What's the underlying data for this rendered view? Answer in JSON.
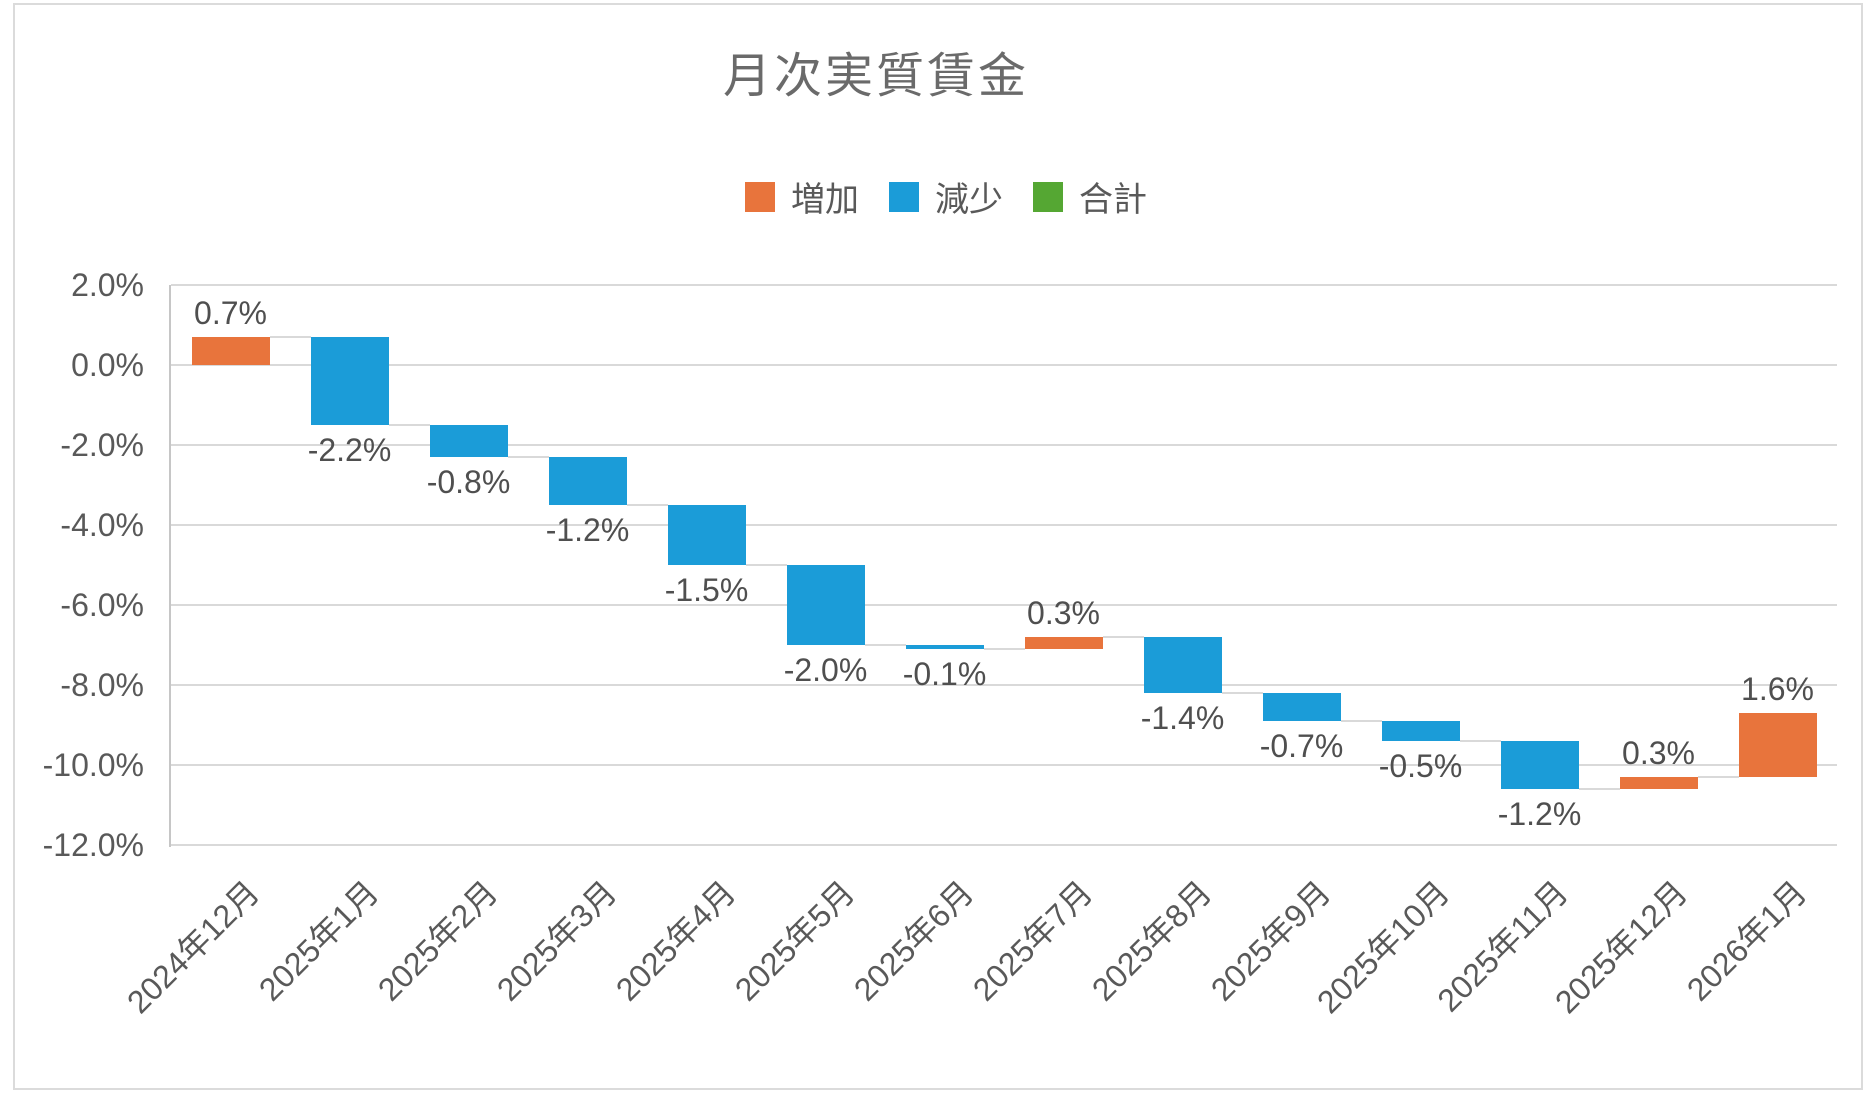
{
  "title": "月次実質賃金",
  "legend": [
    {
      "label": "増加",
      "color": "#E8743C"
    },
    {
      "label": "減少",
      "color": "#1B9CD8"
    },
    {
      "label": "合計",
      "color": "#55A733"
    }
  ],
  "chart_data": {
    "type": "bar",
    "subtype": "waterfall",
    "title": "月次実質賃金",
    "categories": [
      "2024年12月",
      "2025年1月",
      "2025年2月",
      "2025年3月",
      "2025年4月",
      "2025年5月",
      "2025年6月",
      "2025年7月",
      "2025年8月",
      "2025年9月",
      "2025年10月",
      "2025年11月",
      "2025年12月",
      "2026年1月"
    ],
    "values": [
      0.7,
      -2.2,
      -0.8,
      -1.2,
      -1.5,
      -2.0,
      -0.1,
      0.3,
      -1.4,
      -0.7,
      -0.5,
      -1.2,
      0.3,
      1.6
    ],
    "data_labels": [
      "0.7%",
      "-2.2%",
      "-0.8%",
      "-1.2%",
      "-1.5%",
      "-2.0%",
      "-0.1%",
      "0.3%",
      "-1.4%",
      "-0.7%",
      "-0.5%",
      "-1.2%",
      "0.3%",
      "1.6%"
    ],
    "cumulative": [
      0.7,
      -1.5,
      -2.3,
      -3.5,
      -5.0,
      -7.0,
      -7.1,
      -6.8,
      -8.2,
      -8.9,
      -9.4,
      -10.6,
      -10.3,
      -8.7
    ],
    "y_ticks": [
      "2.0%",
      "0.0%",
      "-2.0%",
      "-4.0%",
      "-6.0%",
      "-8.0%",
      "-10.0%",
      "-12.0%"
    ],
    "y_tick_values": [
      2,
      0,
      -2,
      -4,
      -6,
      -8,
      -10,
      -12
    ],
    "ylim": [
      -12,
      2
    ],
    "xlabel": "",
    "ylabel": "",
    "grid": true,
    "legend_position": "top",
    "legend_entries": [
      "増加",
      "減少",
      "合計"
    ],
    "colors": {
      "increase": "#E8743C",
      "decrease": "#1B9CD8",
      "total": "#55A733",
      "gridline": "#D9D9D9",
      "axis_line": "#C6C6C6",
      "connector": "#D9D9D9",
      "title_text": "#6A6A6A",
      "tick_text": "#595959",
      "data_label_text": "#4F4F4F"
    }
  }
}
